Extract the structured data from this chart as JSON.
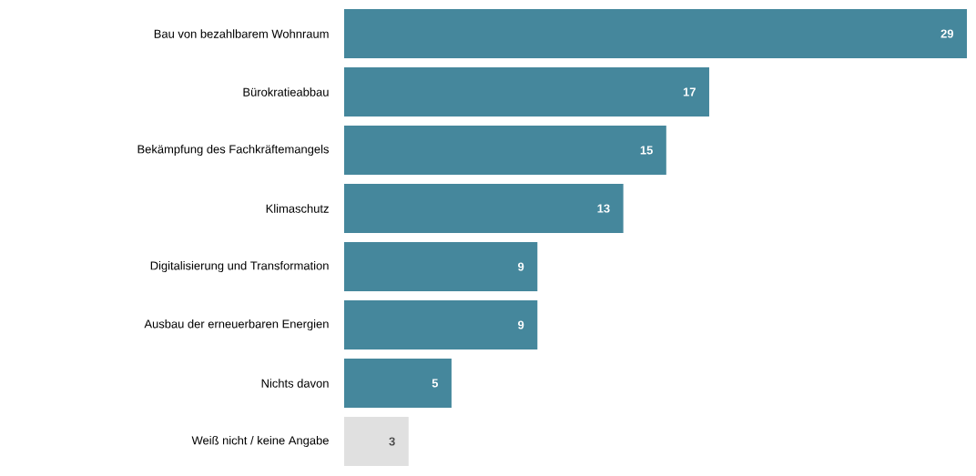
{
  "chart_data": {
    "type": "bar",
    "orientation": "horizontal",
    "data_labels": true,
    "categories": [
      "Bau von bezahlbarem Wohnraum",
      "Bürokratieabbau",
      "Bekämpfung des Fachkräftemangels",
      "Klimaschutz",
      "Digitalisierung und Transformation",
      "Ausbau der erneuerbaren Energien",
      "Nichts davon",
      "Weiß nicht / keine Angabe"
    ],
    "values": [
      29,
      17,
      15,
      13,
      9,
      9,
      5,
      3
    ],
    "colors": [
      "#45879c",
      "#45879c",
      "#45879c",
      "#45879c",
      "#45879c",
      "#45879c",
      "#45879c",
      "#e0e0e0"
    ]
  }
}
